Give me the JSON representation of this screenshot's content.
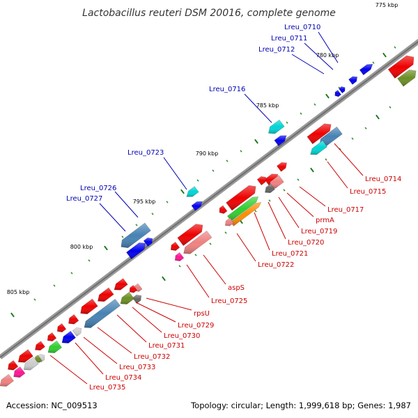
{
  "title": "Lactobacillus reuteri DSM 20016, complete genome",
  "footer": {
    "accession": "Accession: NC_009513",
    "summary": "Topology: circular; Length: 1,999,618 bp; Genes: 1,987"
  },
  "colors": {
    "backbone": "#808080",
    "label_upper": "#0000b3",
    "label_lower": "#cc0000",
    "tick_major": "#1a7a1a",
    "tick_minor": "#2e8b2e"
  },
  "scale_labels": [
    "775 kbp",
    "780 kbp",
    "785 kbp",
    "790 kbp",
    "795 kbp",
    "800 kbp",
    "805 kbp"
  ],
  "upper_labels": [
    "Lreu_0710",
    "Lreu_0711",
    "Lreu_0712",
    "Lreu_0716",
    "Lreu_0723",
    "Lreu_0726",
    "Lreu_0727"
  ],
  "lower_labels": [
    "Lreu_0714",
    "Lreu_0715",
    "Lreu_0717",
    "prmA",
    "Lreu_0719",
    "Lreu_0720",
    "Lreu_0721",
    "Lreu_0722",
    "aspS",
    "Lreu_0725",
    "rpsU",
    "Lreu_0729",
    "Lreu_0730",
    "Lreu_0731",
    "Lreu_0732",
    "Lreu_0733",
    "Lreu_0734",
    "Lreu_0735"
  ]
}
